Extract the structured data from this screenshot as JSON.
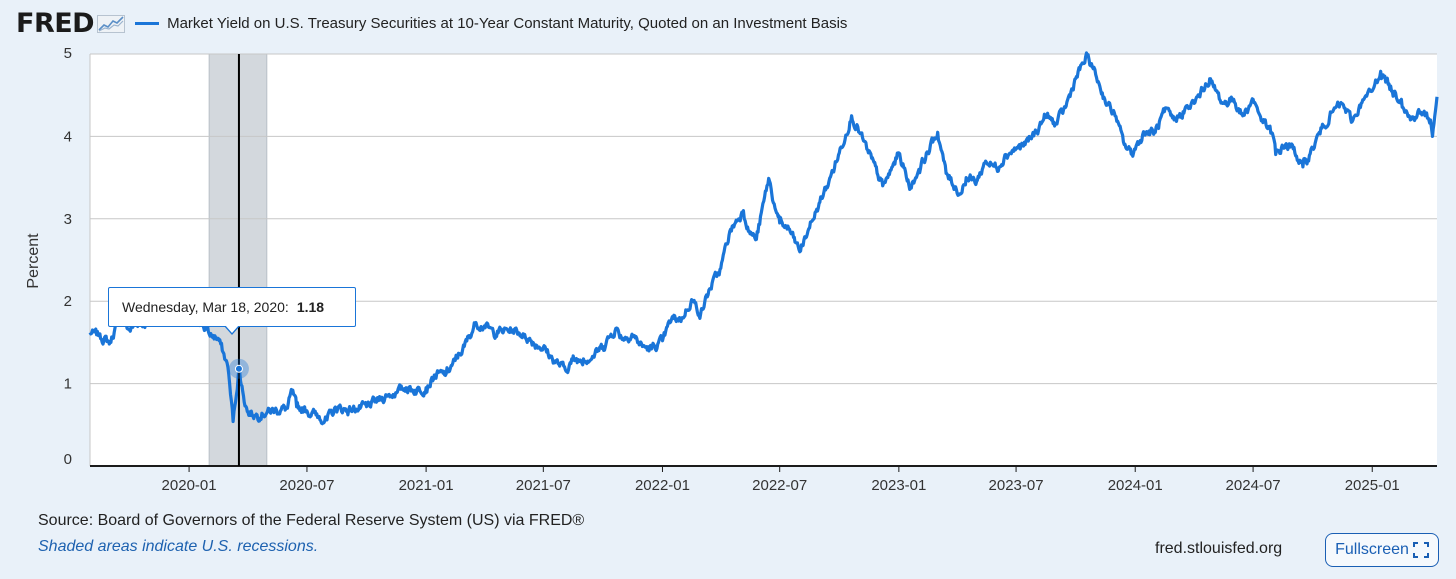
{
  "header": {
    "logo_text": "FRED",
    "logo_icon": "fred-graph-icon",
    "series_title": "Market Yield on U.S. Treasury Securities at 10-Year Constant Maturity, Quoted on an Investment Basis"
  },
  "colors": {
    "series": "#1a75d8",
    "recession_shade": "#d3d8dd",
    "background": "#e9f1f9",
    "plot_background": "#ffffff",
    "link": "#1a5fb4"
  },
  "tooltip": {
    "date_label": "Wednesday, Mar 18, 2020:",
    "value": "1.18"
  },
  "footer": {
    "source": "Source: Board of Governors of the Federal Reserve System (US) via FRED®",
    "recession_note": "Shaded areas indicate U.S. recessions.",
    "url": "fred.stlouisfed.org",
    "fullscreen_label": "Fullscreen",
    "fullscreen_icon": "expand-icon"
  },
  "chart_data": {
    "type": "line",
    "title": "Market Yield on U.S. Treasury Securities at 10-Year Constant Maturity, Quoted on an Investment Basis",
    "xlabel": "",
    "ylabel": "Percent",
    "xlim": [
      "2019-08-01",
      "2025-04-11"
    ],
    "ylim": [
      0,
      5
    ],
    "y_ticks": [
      0,
      1,
      2,
      3,
      4,
      5
    ],
    "x_ticks": [
      "2020-01",
      "2020-07",
      "2021-01",
      "2021-07",
      "2022-01",
      "2022-07",
      "2023-01",
      "2023-07",
      "2024-01",
      "2024-07",
      "2025-01"
    ],
    "grid": true,
    "legend_position": "top-left",
    "recessions": [
      {
        "start": "2020-02-01",
        "end": "2020-04-30"
      }
    ],
    "highlight": {
      "date": "2020-03-18",
      "value": 1.18
    },
    "series": [
      {
        "name": "Market Yield on U.S. Treasury Securities at 10-Year Constant Maturity, Quoted on an Investment Basis",
        "x": [
          "2019-08-01",
          "2019-08-15",
          "2019-09-01",
          "2019-09-15",
          "2019-10-01",
          "2019-10-15",
          "2019-11-01",
          "2019-11-15",
          "2019-12-01",
          "2019-12-15",
          "2020-01-01",
          "2020-01-15",
          "2020-02-01",
          "2020-02-15",
          "2020-03-01",
          "2020-03-09",
          "2020-03-18",
          "2020-03-25",
          "2020-04-01",
          "2020-04-15",
          "2020-05-01",
          "2020-05-15",
          "2020-06-01",
          "2020-06-08",
          "2020-06-15",
          "2020-07-01",
          "2020-07-15",
          "2020-08-01",
          "2020-08-15",
          "2020-09-01",
          "2020-09-15",
          "2020-10-01",
          "2020-10-15",
          "2020-11-01",
          "2020-11-15",
          "2020-12-01",
          "2020-12-15",
          "2021-01-01",
          "2021-01-15",
          "2021-02-01",
          "2021-02-15",
          "2021-03-01",
          "2021-03-19",
          "2021-04-01",
          "2021-04-15",
          "2021-05-01",
          "2021-05-15",
          "2021-06-01",
          "2021-06-15",
          "2021-07-01",
          "2021-07-15",
          "2021-08-04",
          "2021-08-15",
          "2021-09-01",
          "2021-09-15",
          "2021-10-01",
          "2021-10-21",
          "2021-11-01",
          "2021-11-15",
          "2021-12-01",
          "2021-12-15",
          "2022-01-01",
          "2022-01-15",
          "2022-02-01",
          "2022-02-15",
          "2022-03-01",
          "2022-03-15",
          "2022-04-01",
          "2022-04-15",
          "2022-05-06",
          "2022-05-15",
          "2022-05-26",
          "2022-06-14",
          "2022-06-25",
          "2022-07-01",
          "2022-07-15",
          "2022-08-01",
          "2022-08-15",
          "2022-09-01",
          "2022-09-15",
          "2022-10-01",
          "2022-10-20",
          "2022-11-01",
          "2022-11-15",
          "2022-12-07",
          "2022-12-15",
          "2023-01-01",
          "2023-01-19",
          "2023-02-01",
          "2023-03-02",
          "2023-03-15",
          "2023-04-06",
          "2023-04-15",
          "2023-05-01",
          "2023-05-15",
          "2023-06-01",
          "2023-06-15",
          "2023-07-01",
          "2023-07-15",
          "2023-08-01",
          "2023-08-15",
          "2023-09-01",
          "2023-09-15",
          "2023-10-01",
          "2023-10-19",
          "2023-11-01",
          "2023-11-15",
          "2023-12-01",
          "2023-12-15",
          "2023-12-27",
          "2024-01-15",
          "2024-02-01",
          "2024-02-15",
          "2024-03-01",
          "2024-03-15",
          "2024-04-01",
          "2024-04-25",
          "2024-05-01",
          "2024-05-15",
          "2024-06-01",
          "2024-06-15",
          "2024-07-01",
          "2024-07-15",
          "2024-08-01",
          "2024-08-05",
          "2024-08-20",
          "2024-09-01",
          "2024-09-16",
          "2024-10-01",
          "2024-10-15",
          "2024-11-01",
          "2024-11-15",
          "2024-12-01",
          "2024-12-15",
          "2025-01-01",
          "2025-01-14",
          "2025-02-01",
          "2025-02-15",
          "2025-03-01",
          "2025-03-15",
          "2025-04-01",
          "2025-04-04",
          "2025-04-11"
        ],
        "y": [
          1.62,
          1.58,
          1.5,
          1.8,
          1.65,
          1.75,
          1.72,
          1.82,
          1.78,
          1.88,
          1.85,
          1.8,
          1.6,
          1.55,
          1.2,
          0.54,
          1.18,
          0.85,
          0.65,
          0.62,
          0.66,
          0.68,
          0.7,
          0.9,
          0.72,
          0.67,
          0.62,
          0.56,
          0.7,
          0.68,
          0.69,
          0.72,
          0.78,
          0.85,
          0.89,
          0.95,
          0.92,
          0.95,
          1.1,
          1.12,
          1.28,
          1.45,
          1.74,
          1.7,
          1.62,
          1.64,
          1.65,
          1.6,
          1.5,
          1.44,
          1.3,
          1.17,
          1.28,
          1.3,
          1.33,
          1.45,
          1.67,
          1.55,
          1.6,
          1.45,
          1.42,
          1.52,
          1.78,
          1.8,
          2.02,
          1.85,
          2.15,
          2.4,
          2.85,
          3.1,
          2.85,
          2.75,
          3.49,
          3.1,
          2.95,
          2.88,
          2.6,
          2.88,
          3.2,
          3.45,
          3.8,
          4.25,
          4.05,
          3.8,
          3.4,
          3.5,
          3.8,
          3.37,
          3.6,
          4.05,
          3.55,
          3.3,
          3.5,
          3.45,
          3.7,
          3.62,
          3.78,
          3.85,
          3.9,
          4.05,
          4.25,
          4.15,
          4.35,
          4.7,
          4.98,
          4.75,
          4.45,
          4.25,
          3.9,
          3.79,
          4.05,
          4.05,
          4.3,
          4.2,
          4.3,
          4.4,
          4.7,
          4.6,
          4.4,
          4.45,
          4.25,
          4.45,
          4.2,
          4.0,
          3.78,
          3.9,
          3.85,
          3.63,
          3.85,
          4.1,
          4.3,
          4.4,
          4.18,
          4.4,
          4.55,
          4.79,
          4.55,
          4.45,
          4.2,
          4.3,
          4.2,
          4.0,
          4.48
        ]
      }
    ]
  }
}
